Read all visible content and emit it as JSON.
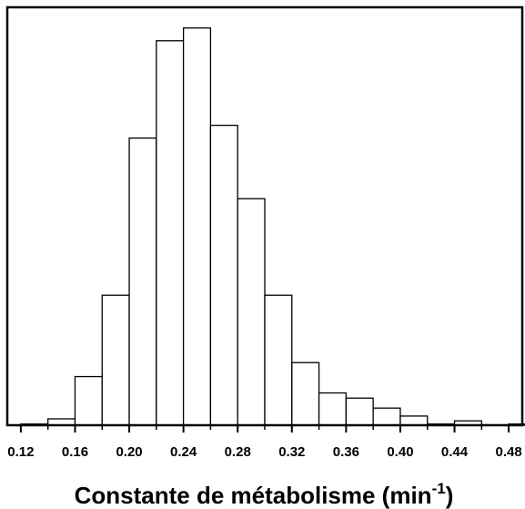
{
  "chart_data": {
    "type": "bar",
    "subtype": "histogram",
    "title": "",
    "xlabel": {
      "main": "Constante de métabolisme (min",
      "sup": "-1",
      "close": ")"
    },
    "ylabel": "",
    "x_ticks": [
      "0.12",
      "0.16",
      "0.20",
      "0.24",
      "0.28",
      "0.32",
      "0.36",
      "0.40",
      "0.44",
      "0.48"
    ],
    "xlim": [
      0.11,
      0.49
    ],
    "ylim": [
      0,
      1.0
    ],
    "grid": false,
    "y_tick_labels_visible": false,
    "bin_width": 0.02,
    "bins": [
      {
        "start": 0.12,
        "end": 0.14,
        "value": 0.003
      },
      {
        "start": 0.14,
        "end": 0.16,
        "value": 0.016
      },
      {
        "start": 0.16,
        "end": 0.18,
        "value": 0.122
      },
      {
        "start": 0.18,
        "end": 0.2,
        "value": 0.326
      },
      {
        "start": 0.2,
        "end": 0.22,
        "value": 0.72
      },
      {
        "start": 0.22,
        "end": 0.24,
        "value": 0.964
      },
      {
        "start": 0.24,
        "end": 0.26,
        "value": 0.996
      },
      {
        "start": 0.26,
        "end": 0.28,
        "value": 0.752
      },
      {
        "start": 0.28,
        "end": 0.3,
        "value": 0.568
      },
      {
        "start": 0.3,
        "end": 0.32,
        "value": 0.326
      },
      {
        "start": 0.32,
        "end": 0.34,
        "value": 0.157
      },
      {
        "start": 0.34,
        "end": 0.36,
        "value": 0.081
      },
      {
        "start": 0.36,
        "end": 0.38,
        "value": 0.068
      },
      {
        "start": 0.38,
        "end": 0.4,
        "value": 0.043
      },
      {
        "start": 0.4,
        "end": 0.42,
        "value": 0.023
      },
      {
        "start": 0.42,
        "end": 0.44,
        "value": 0.003
      },
      {
        "start": 0.44,
        "end": 0.46,
        "value": 0.011
      },
      {
        "start": 0.46,
        "end": 0.48,
        "value": 0.001
      },
      {
        "start": 0.48,
        "end": 0.5,
        "value": 0.003
      }
    ],
    "colors": {
      "bar_fill": "#ffffff",
      "bar_stroke": "#000000",
      "axis": "#000000"
    }
  }
}
